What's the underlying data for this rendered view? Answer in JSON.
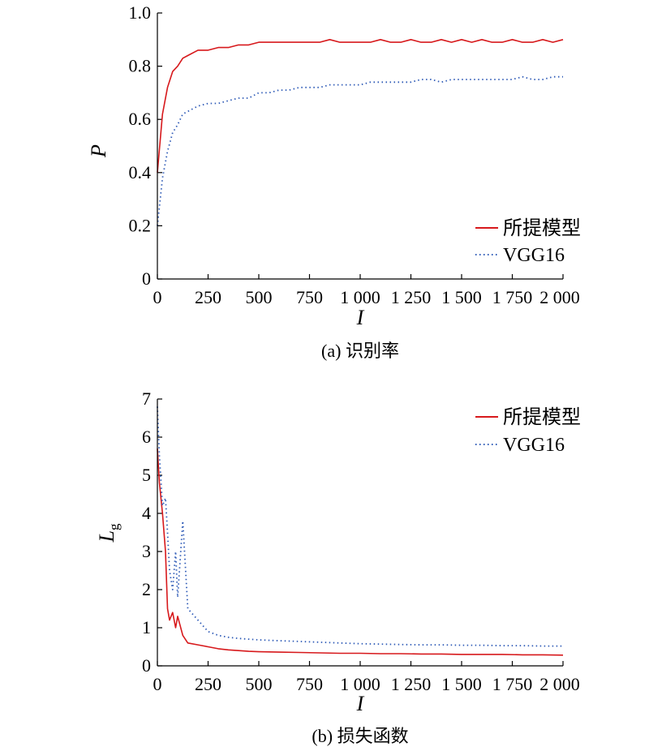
{
  "colors": {
    "proposed": "#d7191c",
    "vgg": "#2f5bb7",
    "axis": "#000000"
  },
  "chart_data": [
    {
      "type": "line",
      "caption": "(a) 识别率",
      "xlabel": "I",
      "ylabel": "P",
      "xlim": [
        0,
        2000
      ],
      "ylim": [
        0,
        1.0
      ],
      "x_ticks": [
        0,
        250,
        500,
        750,
        1000,
        1250,
        1500,
        1750,
        2000
      ],
      "x_tick_labels": [
        "0",
        "250",
        "500",
        "750",
        "1 000",
        "1 250",
        "1 500",
        "1 750",
        "2 000"
      ],
      "y_ticks": [
        0,
        0.2,
        0.4,
        0.6,
        0.8,
        1.0
      ],
      "y_tick_labels": [
        "0",
        "0.2",
        "0.4",
        "0.6",
        "0.8",
        "1.0"
      ],
      "legend_position": "lower-right",
      "series": [
        {
          "name": "所提模型",
          "style": "solid",
          "x": [
            0,
            25,
            50,
            75,
            100,
            125,
            150,
            200,
            250,
            300,
            350,
            400,
            450,
            500,
            550,
            600,
            650,
            700,
            750,
            800,
            850,
            900,
            950,
            1000,
            1050,
            1100,
            1150,
            1200,
            1250,
            1300,
            1350,
            1400,
            1450,
            1500,
            1550,
            1600,
            1650,
            1700,
            1750,
            1800,
            1850,
            1900,
            1950,
            2000
          ],
          "y": [
            0.4,
            0.62,
            0.72,
            0.78,
            0.8,
            0.83,
            0.84,
            0.86,
            0.86,
            0.87,
            0.87,
            0.88,
            0.88,
            0.89,
            0.89,
            0.89,
            0.89,
            0.89,
            0.89,
            0.89,
            0.9,
            0.89,
            0.89,
            0.89,
            0.89,
            0.9,
            0.89,
            0.89,
            0.9,
            0.89,
            0.89,
            0.9,
            0.89,
            0.9,
            0.89,
            0.9,
            0.89,
            0.89,
            0.9,
            0.89,
            0.89,
            0.9,
            0.89,
            0.9
          ]
        },
        {
          "name": "VGG16",
          "style": "dotted",
          "x": [
            0,
            25,
            50,
            75,
            100,
            125,
            150,
            200,
            250,
            300,
            350,
            400,
            450,
            500,
            550,
            600,
            650,
            700,
            750,
            800,
            850,
            900,
            950,
            1000,
            1050,
            1100,
            1150,
            1200,
            1250,
            1300,
            1350,
            1400,
            1450,
            1500,
            1550,
            1600,
            1650,
            1700,
            1750,
            1800,
            1850,
            1900,
            1950,
            2000
          ],
          "y": [
            0.2,
            0.38,
            0.48,
            0.55,
            0.58,
            0.62,
            0.63,
            0.65,
            0.66,
            0.66,
            0.67,
            0.68,
            0.68,
            0.7,
            0.7,
            0.71,
            0.71,
            0.72,
            0.72,
            0.72,
            0.73,
            0.73,
            0.73,
            0.73,
            0.74,
            0.74,
            0.74,
            0.74,
            0.74,
            0.75,
            0.75,
            0.74,
            0.75,
            0.75,
            0.75,
            0.75,
            0.75,
            0.75,
            0.75,
            0.76,
            0.75,
            0.75,
            0.76,
            0.76
          ]
        }
      ]
    },
    {
      "type": "line",
      "caption": "(b) 损失函数",
      "xlabel": "I",
      "ylabel": "L",
      "ylabel_sub": "g",
      "xlim": [
        0,
        2000
      ],
      "ylim": [
        0,
        7
      ],
      "x_ticks": [
        0,
        250,
        500,
        750,
        1000,
        1250,
        1500,
        1750,
        2000
      ],
      "x_tick_labels": [
        "0",
        "250",
        "500",
        "750",
        "1 000",
        "1 250",
        "1 500",
        "1 750",
        "2 000"
      ],
      "y_ticks": [
        0,
        1,
        2,
        3,
        4,
        5,
        6,
        7
      ],
      "y_tick_labels": [
        "0",
        "1",
        "2",
        "3",
        "4",
        "5",
        "6",
        "7"
      ],
      "legend_position": "upper-right",
      "series": [
        {
          "name": "所提模型",
          "style": "solid",
          "x": [
            0,
            10,
            25,
            40,
            50,
            60,
            75,
            90,
            100,
            125,
            150,
            200,
            250,
            300,
            350,
            400,
            450,
            500,
            600,
            700,
            800,
            900,
            1000,
            1100,
            1200,
            1300,
            1400,
            1500,
            1600,
            1700,
            1800,
            1900,
            2000
          ],
          "y": [
            5.7,
            4.8,
            4.0,
            3.0,
            1.5,
            1.2,
            1.4,
            1.0,
            1.3,
            0.8,
            0.6,
            0.55,
            0.5,
            0.45,
            0.42,
            0.4,
            0.38,
            0.37,
            0.36,
            0.35,
            0.34,
            0.33,
            0.33,
            0.32,
            0.32,
            0.31,
            0.31,
            0.3,
            0.3,
            0.3,
            0.29,
            0.29,
            0.28
          ]
        },
        {
          "name": "VGG16",
          "style": "dotted",
          "x": [
            0,
            10,
            25,
            40,
            50,
            60,
            75,
            90,
            100,
            125,
            150,
            200,
            250,
            300,
            350,
            400,
            450,
            500,
            600,
            700,
            800,
            900,
            1000,
            1100,
            1200,
            1300,
            1400,
            1500,
            1600,
            1700,
            1800,
            1900,
            2000
          ],
          "y": [
            6.8,
            5.5,
            4.2,
            4.4,
            3.5,
            2.5,
            2.0,
            3.0,
            1.8,
            3.8,
            1.5,
            1.2,
            0.9,
            0.8,
            0.75,
            0.72,
            0.7,
            0.68,
            0.66,
            0.64,
            0.62,
            0.6,
            0.58,
            0.57,
            0.56,
            0.55,
            0.55,
            0.54,
            0.54,
            0.53,
            0.53,
            0.52,
            0.52
          ]
        }
      ]
    }
  ]
}
